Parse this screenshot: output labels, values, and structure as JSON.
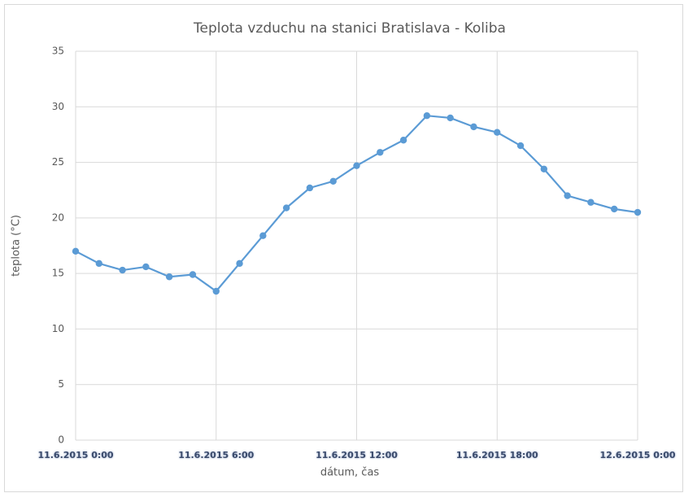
{
  "chart_data": {
    "type": "line",
    "title": "Teplota vzduchu na stanici Bratislava - Koliba",
    "x_label": "dátum, čas",
    "y_label": "teplota (°C)",
    "categories": [
      "11.6.2015 0:00",
      null,
      null,
      null,
      null,
      null,
      "11.6.2015 6:00",
      null,
      null,
      null,
      null,
      null,
      "11.6.2015 12:00",
      null,
      null,
      null,
      null,
      null,
      "11.6.2015 18:00",
      null,
      null,
      null,
      null,
      null,
      "12.6.2015 0:00"
    ],
    "series": [
      {
        "name": "teplota",
        "color": "#5b9bd5",
        "values": [
          17.0,
          15.9,
          15.3,
          15.6,
          14.7,
          14.9,
          13.4,
          15.9,
          18.4,
          20.9,
          22.7,
          23.3,
          24.7,
          25.9,
          27.0,
          29.2,
          29.0,
          28.2,
          27.7,
          26.5,
          24.4,
          22.0,
          21.4,
          20.8,
          20.5
        ]
      }
    ],
    "ylim": [
      0,
      35
    ],
    "yticks": [
      0,
      5,
      10,
      15,
      20,
      25,
      30,
      35
    ],
    "grid": true
  }
}
